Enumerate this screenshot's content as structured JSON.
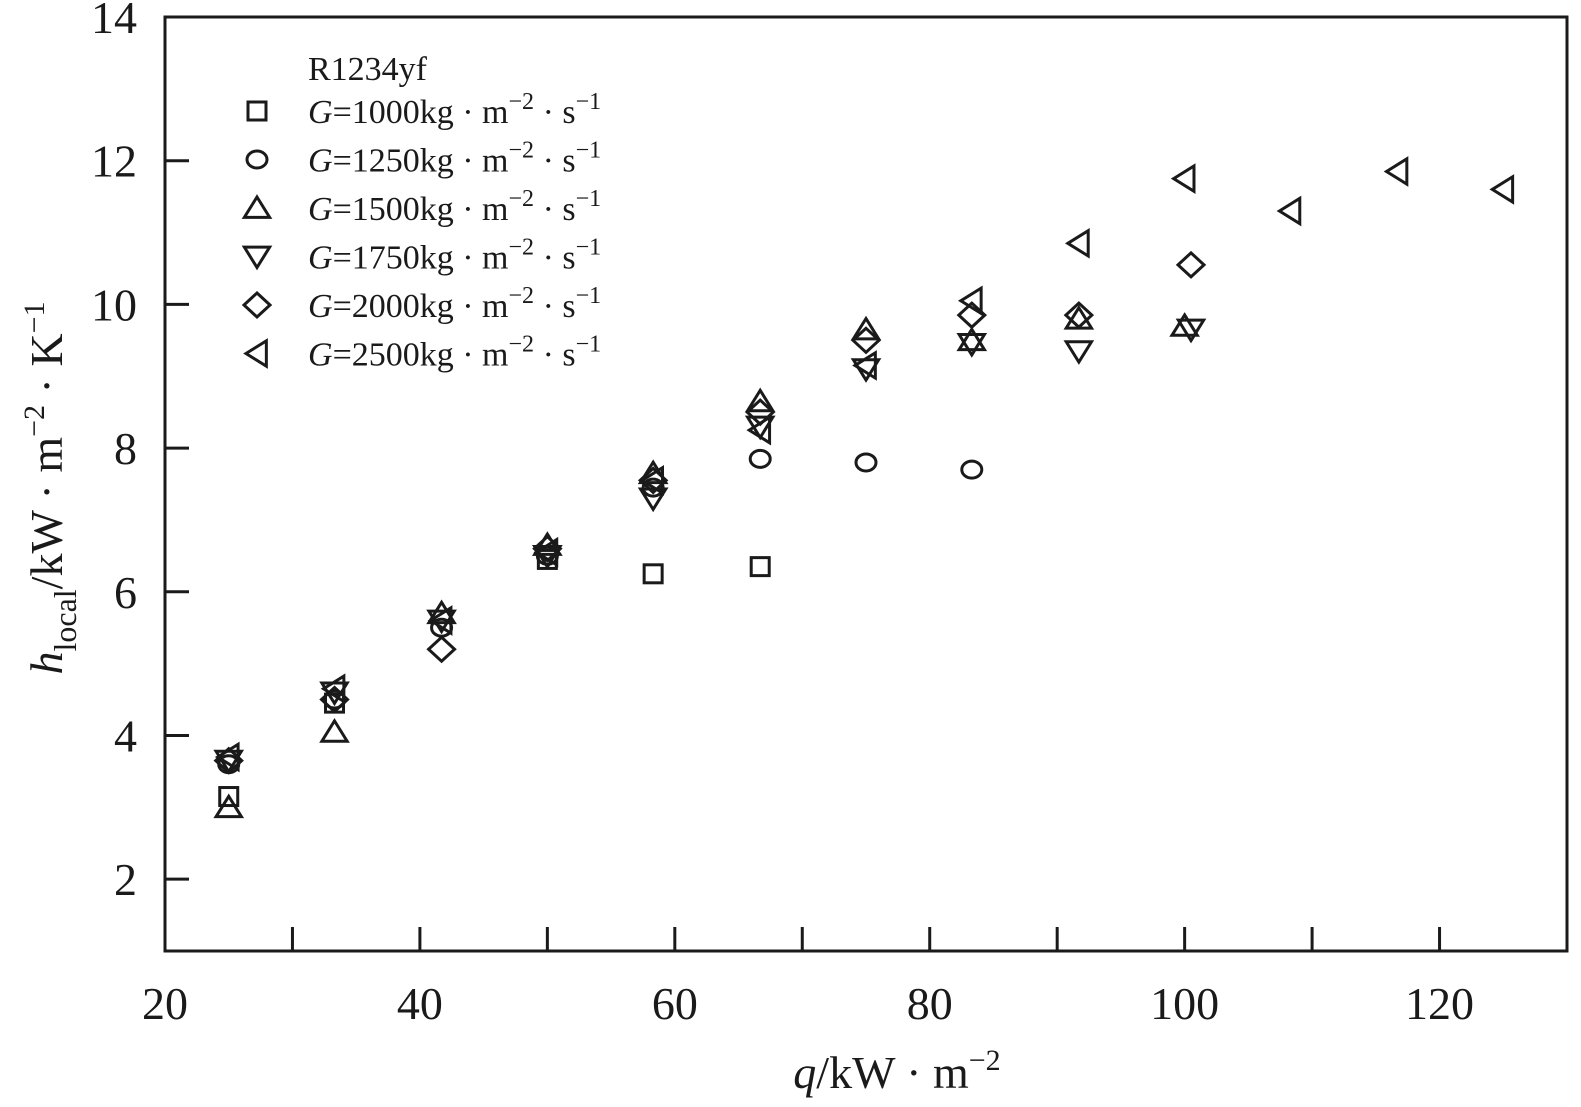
{
  "chart_data": {
    "type": "scatter",
    "title": "",
    "xlabel": {
      "var": "q",
      "unit": "/kW · m",
      "sup": "−2"
    },
    "ylabel": {
      "var": "h",
      "sub": "local",
      "unit": "/kW · m",
      "sup1": "−2",
      "mid": " · K",
      "sup2": "−1"
    },
    "xlim": [
      20,
      130
    ],
    "ylim": [
      1,
      14
    ],
    "xticks": [
      20,
      40,
      60,
      80,
      100,
      120
    ],
    "xminor": [
      30,
      50,
      70,
      90,
      110
    ],
    "yticks": [
      2,
      4,
      6,
      8,
      10,
      12,
      14
    ],
    "grid": false,
    "legend": {
      "placement": "top-left",
      "title": "R1234yf",
      "prefix": "G",
      "unit": "kg · m",
      "sup1": "−2",
      "mid": " · s",
      "sup2": "−1"
    },
    "series": [
      {
        "name": "=1000",
        "marker": "square",
        "x": [
          25,
          33.3,
          50,
          58.3,
          66.7
        ],
        "y": [
          3.15,
          4.45,
          6.45,
          6.25,
          6.35
        ]
      },
      {
        "name": "=1250",
        "marker": "circle",
        "x": [
          25,
          33.3,
          41.7,
          50,
          58.3,
          66.7,
          75,
          83.3
        ],
        "y": [
          3.6,
          4.5,
          5.5,
          6.5,
          7.45,
          7.85,
          7.8,
          7.7
        ]
      },
      {
        "name": "=1500",
        "marker": "triangle-up",
        "x": [
          25,
          33.3,
          41.7,
          50,
          58.3,
          66.7,
          75,
          83.3,
          91.7,
          100
        ],
        "y": [
          3.0,
          4.05,
          5.7,
          6.65,
          7.65,
          8.65,
          9.65,
          9.5,
          9.8,
          9.7
        ]
      },
      {
        "name": "=1750",
        "marker": "triangle-down",
        "x": [
          25,
          33.3,
          41.7,
          50,
          58.3,
          66.7,
          75,
          83.3,
          91.7,
          100.5
        ],
        "y": [
          3.65,
          4.6,
          5.6,
          6.5,
          7.3,
          8.3,
          9.1,
          9.45,
          9.35,
          9.65
        ]
      },
      {
        "name": "=2000",
        "marker": "diamond",
        "x": [
          25,
          33.3,
          41.7,
          50,
          58.3,
          66.7,
          75,
          83.3,
          91.7,
          100.5
        ],
        "y": [
          3.65,
          4.5,
          5.2,
          6.6,
          7.55,
          8.5,
          9.5,
          9.85,
          9.85,
          10.55
        ]
      },
      {
        "name": "=2500",
        "marker": "triangle-left",
        "x": [
          25,
          33.3,
          41.7,
          50,
          58.3,
          66.7,
          75,
          83.3,
          91.7,
          100,
          108.3,
          116.7,
          125
        ],
        "y": [
          3.7,
          4.65,
          5.6,
          6.55,
          7.55,
          8.25,
          9.15,
          10.05,
          10.85,
          11.75,
          11.3,
          11.85,
          11.6
        ]
      }
    ]
  }
}
